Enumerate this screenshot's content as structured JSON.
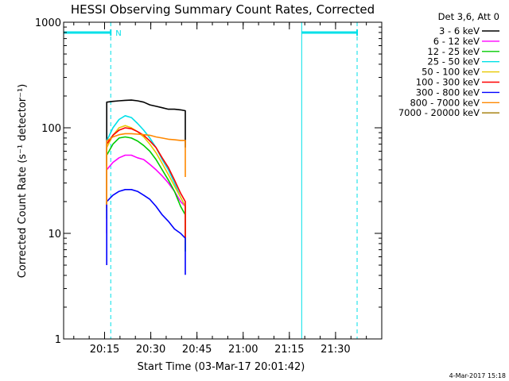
{
  "chart_data": {
    "type": "line",
    "title": "HESSI Observing Summary Count Rates, Corrected",
    "xlabel": "Start Time (03-Mar-17 20:01:42)",
    "ylabel": "Corrected Count Rate (s⁻¹ detector⁻¹)",
    "yscale": "log",
    "ylim": [
      1,
      1000
    ],
    "xlim_minutes": [
      0,
      103.3
    ],
    "x_ticks": [
      "20:15",
      "20:30",
      "20:45",
      "21:00",
      "21:15",
      "21:30"
    ],
    "x_tick_minutes": [
      13.3,
      28.3,
      43.3,
      58.3,
      73.3,
      88.3
    ],
    "y_ticks": [
      "1",
      "10",
      "100",
      "1000"
    ],
    "y_tick_values": [
      1,
      10,
      100,
      1000
    ],
    "legend_header": "Det 3,6, Att 0",
    "series": [
      {
        "name": "3 - 6 keV",
        "color": "#000000",
        "x": [
          14,
          16,
          18,
          20,
          22,
          24,
          26,
          28,
          30,
          32,
          34,
          36,
          38,
          39.5
        ],
        "y": [
          175,
          178,
          180,
          182,
          183,
          180,
          175,
          165,
          160,
          155,
          150,
          150,
          148,
          145
        ]
      },
      {
        "name": "6 - 12 keV",
        "color": "#ff00ff",
        "x": [
          14,
          16,
          18,
          20,
          22,
          24,
          26,
          28,
          30,
          32,
          34,
          36,
          38,
          39.5
        ],
        "y": [
          40,
          47,
          52,
          55,
          55,
          52,
          50,
          45,
          40,
          35,
          30,
          25,
          20,
          18
        ]
      },
      {
        "name": "12 - 25 keV",
        "color": "#00cc00",
        "x": [
          14,
          16,
          18,
          20,
          22,
          24,
          26,
          28,
          30,
          32,
          34,
          36,
          38,
          39.5
        ],
        "y": [
          55,
          70,
          80,
          82,
          80,
          75,
          68,
          60,
          50,
          40,
          32,
          25,
          18,
          15
        ]
      },
      {
        "name": "25 - 50 keV",
        "color": "#00e0e8",
        "x": [
          14,
          16,
          18,
          20,
          22,
          24,
          26,
          28,
          30,
          32,
          34,
          36,
          38,
          39.5
        ],
        "y": [
          75,
          100,
          120,
          130,
          125,
          110,
          95,
          80,
          65,
          50,
          40,
          30,
          22,
          18
        ]
      },
      {
        "name": "50 - 100 keV",
        "color": "#e8c800",
        "x": [
          14,
          16,
          18,
          20,
          22,
          24,
          26,
          28,
          30,
          32,
          34,
          36,
          38,
          39.5
        ],
        "y": [
          65,
          85,
          100,
          105,
          100,
          92,
          82,
          70,
          58,
          46,
          36,
          28,
          22,
          18
        ]
      },
      {
        "name": "100 - 300 keV",
        "color": "#ff0000",
        "x": [
          14,
          16,
          18,
          20,
          22,
          24,
          26,
          28,
          30,
          32,
          34,
          36,
          38,
          39.5
        ],
        "y": [
          70,
          85,
          95,
          100,
          98,
          92,
          85,
          75,
          65,
          52,
          42,
          32,
          24,
          20
        ]
      },
      {
        "name": "300 - 800 keV",
        "color": "#0000ff",
        "x": [
          14,
          16,
          18,
          20,
          22,
          24,
          26,
          28,
          30,
          32,
          34,
          36,
          38,
          39.5
        ],
        "y": [
          20,
          23,
          25,
          26,
          26,
          25,
          23,
          21,
          18,
          15,
          13,
          11,
          10,
          9
        ]
      },
      {
        "name": "800 - 7000 keV",
        "color": "#ff8800",
        "x": [
          14,
          16,
          18,
          20,
          22,
          24,
          26,
          28,
          30,
          32,
          34,
          36,
          38,
          39.5
        ],
        "y": [
          75,
          82,
          86,
          88,
          88,
          87,
          86,
          85,
          82,
          80,
          78,
          77,
          76,
          76
        ]
      },
      {
        "name": "7000 - 20000 keV",
        "color": "#a07800",
        "x": [],
        "y": []
      }
    ],
    "attenuator_flag": {
      "label": "N",
      "color": "#00e0e8",
      "spans_minutes": [
        [
          0,
          15.3
        ],
        [
          77.3,
          95.3
        ]
      ]
    },
    "cyan_vertical_minutes": [
      0,
      15.3,
      77.3,
      95.3
    ]
  },
  "footer": {
    "date_stamp": "4-Mar-2017 15:18"
  }
}
